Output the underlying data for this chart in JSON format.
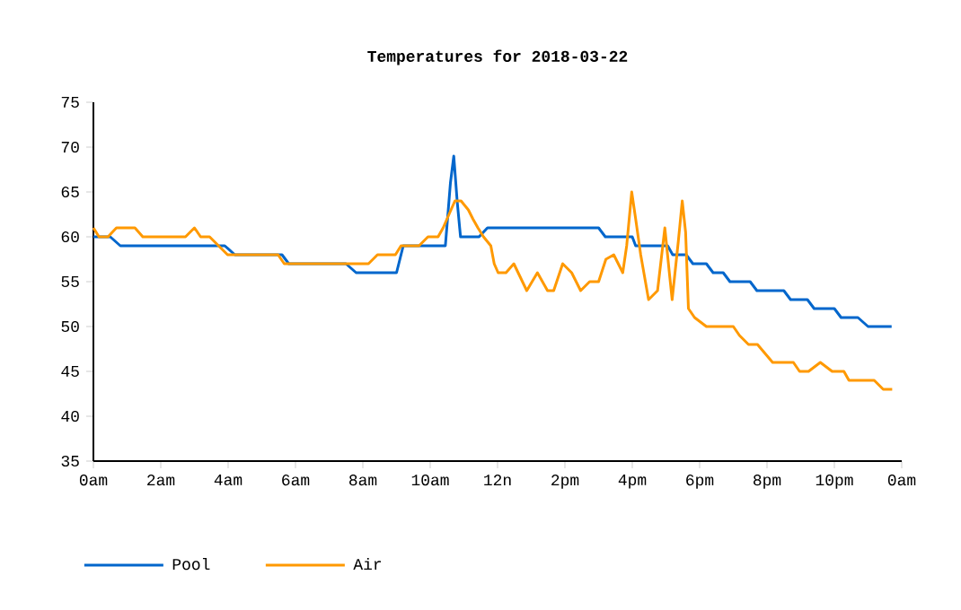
{
  "chart_data": {
    "type": "line",
    "title": "Temperatures for 2018-03-22",
    "xlim": [
      "2018-03-22T00:00",
      "2018-03-23T00:00"
    ],
    "ylim": [
      35,
      75
    ],
    "xticks": [
      {
        "value": "2018-03-22T00:00",
        "label": "0am"
      },
      {
        "value": "2018-03-22T02:00",
        "label": "2am"
      },
      {
        "value": "2018-03-22T04:00",
        "label": "4am"
      },
      {
        "value": "2018-03-22T06:00",
        "label": "6am"
      },
      {
        "value": "2018-03-22T08:00",
        "label": "8am"
      },
      {
        "value": "2018-03-22T10:00",
        "label": "10am"
      },
      {
        "value": "2018-03-22T12:00",
        "label": "12n"
      },
      {
        "value": "2018-03-22T14:00",
        "label": "2pm"
      },
      {
        "value": "2018-03-22T16:00",
        "label": "4pm"
      },
      {
        "value": "2018-03-22T18:00",
        "label": "6pm"
      },
      {
        "value": "2018-03-22T20:00",
        "label": "8pm"
      },
      {
        "value": "2018-03-22T22:00",
        "label": "10pm"
      },
      {
        "value": "2018-03-23T00:00",
        "label": "0am"
      }
    ],
    "yticks": [
      35,
      40,
      45,
      50,
      55,
      60,
      65,
      70,
      75
    ],
    "legend": "bottom left",
    "series": [
      {
        "name": "Pool",
        "color": "#0066cc",
        "x": [
          "2018-03-22T00:00",
          "2018-03-22T00:30",
          "2018-03-22T00:48",
          "2018-03-22T03:54",
          "2018-03-22T04:12",
          "2018-03-22T05:36",
          "2018-03-22T05:48",
          "2018-03-22T07:30",
          "2018-03-22T07:48",
          "2018-03-22T09:00",
          "2018-03-22T09:12",
          "2018-03-22T10:27",
          "2018-03-22T10:36",
          "2018-03-22T10:42",
          "2018-03-22T10:48",
          "2018-03-22T10:54",
          "2018-03-22T11:27",
          "2018-03-22T11:42",
          "2018-03-22T15:00",
          "2018-03-22T15:12",
          "2018-03-22T16:00",
          "2018-03-22T16:06",
          "2018-03-22T17:03",
          "2018-03-22T17:12",
          "2018-03-22T17:36",
          "2018-03-22T17:48",
          "2018-03-22T18:12",
          "2018-03-22T18:24",
          "2018-03-22T18:42",
          "2018-03-22T18:54",
          "2018-03-22T19:30",
          "2018-03-22T19:42",
          "2018-03-22T20:30",
          "2018-03-22T20:42",
          "2018-03-22T21:12",
          "2018-03-22T21:24",
          "2018-03-22T22:00",
          "2018-03-22T22:12",
          "2018-03-22T22:42",
          "2018-03-22T23:00",
          "2018-03-22T23:42"
        ],
        "values": [
          60,
          60,
          59,
          59,
          58,
          58,
          57,
          57,
          56,
          56,
          59,
          59,
          66,
          69,
          64,
          60,
          60,
          61,
          61,
          60,
          60,
          59,
          59,
          58,
          58,
          57,
          57,
          56,
          56,
          55,
          55,
          54,
          54,
          53,
          53,
          52,
          52,
          51,
          51,
          50,
          50
        ]
      },
      {
        "name": "Air",
        "color": "#ff9900",
        "x": [
          "2018-03-22T00:00",
          "2018-03-22T00:10",
          "2018-03-22T00:26",
          "2018-03-22T00:41",
          "2018-03-22T01:14",
          "2018-03-22T01:28",
          "2018-03-22T02:44",
          "2018-03-22T03:00",
          "2018-03-22T03:11",
          "2018-03-22T03:27",
          "2018-03-22T03:43",
          "2018-03-22T03:59",
          "2018-03-22T05:29",
          "2018-03-22T05:40",
          "2018-03-22T08:10",
          "2018-03-22T08:26",
          "2018-03-22T08:58",
          "2018-03-22T09:08",
          "2018-03-22T09:40",
          "2018-03-22T09:56",
          "2018-03-22T10:14",
          "2018-03-22T10:23",
          "2018-03-22T10:44",
          "2018-03-22T10:55",
          "2018-03-22T11:08",
          "2018-03-22T11:16",
          "2018-03-22T11:25",
          "2018-03-22T11:35",
          "2018-03-22T11:48",
          "2018-03-22T11:54",
          "2018-03-22T12:01",
          "2018-03-22T12:15",
          "2018-03-22T12:29",
          "2018-03-22T12:52",
          "2018-03-22T13:11",
          "2018-03-22T13:29",
          "2018-03-22T13:40",
          "2018-03-22T13:56",
          "2018-03-22T14:12",
          "2018-03-22T14:28",
          "2018-03-22T14:44",
          "2018-03-22T15:00",
          "2018-03-22T15:13",
          "2018-03-22T15:27",
          "2018-03-22T15:43",
          "2018-03-22T15:50",
          "2018-03-22T15:59",
          "2018-03-22T16:06",
          "2018-03-22T16:15",
          "2018-03-22T16:29",
          "2018-03-22T16:45",
          "2018-03-22T16:58",
          "2018-03-22T17:06",
          "2018-03-22T17:11",
          "2018-03-22T17:22",
          "2018-03-22T17:29",
          "2018-03-22T17:35",
          "2018-03-22T17:40",
          "2018-03-22T17:51",
          "2018-03-22T18:12",
          "2018-03-22T19:00",
          "2018-03-22T19:11",
          "2018-03-22T19:27",
          "2018-03-22T19:43",
          "2018-03-22T20:10",
          "2018-03-22T20:47",
          "2018-03-22T20:58",
          "2018-03-22T21:14",
          "2018-03-22T21:35",
          "2018-03-22T21:56",
          "2018-03-22T22:17",
          "2018-03-22T22:26",
          "2018-03-22T23:11",
          "2018-03-22T23:27",
          "2018-03-22T23:43"
        ],
        "values": [
          61,
          60,
          60,
          61,
          61,
          60,
          60,
          61,
          60,
          60,
          59,
          58,
          58,
          57,
          57,
          58,
          58,
          59,
          59,
          60,
          60,
          61,
          64,
          64,
          63,
          62,
          61,
          60,
          59,
          57,
          56,
          56,
          57,
          54,
          56,
          54,
          54,
          57,
          56,
          54,
          55,
          55,
          57.5,
          58,
          56,
          59,
          65,
          62,
          58,
          53,
          54,
          61,
          56,
          53,
          59.5,
          64,
          60.5,
          52,
          51,
          50,
          50,
          49,
          48,
          48,
          46,
          46,
          45,
          45,
          46,
          45,
          45,
          44,
          44,
          43,
          43
        ]
      }
    ]
  }
}
